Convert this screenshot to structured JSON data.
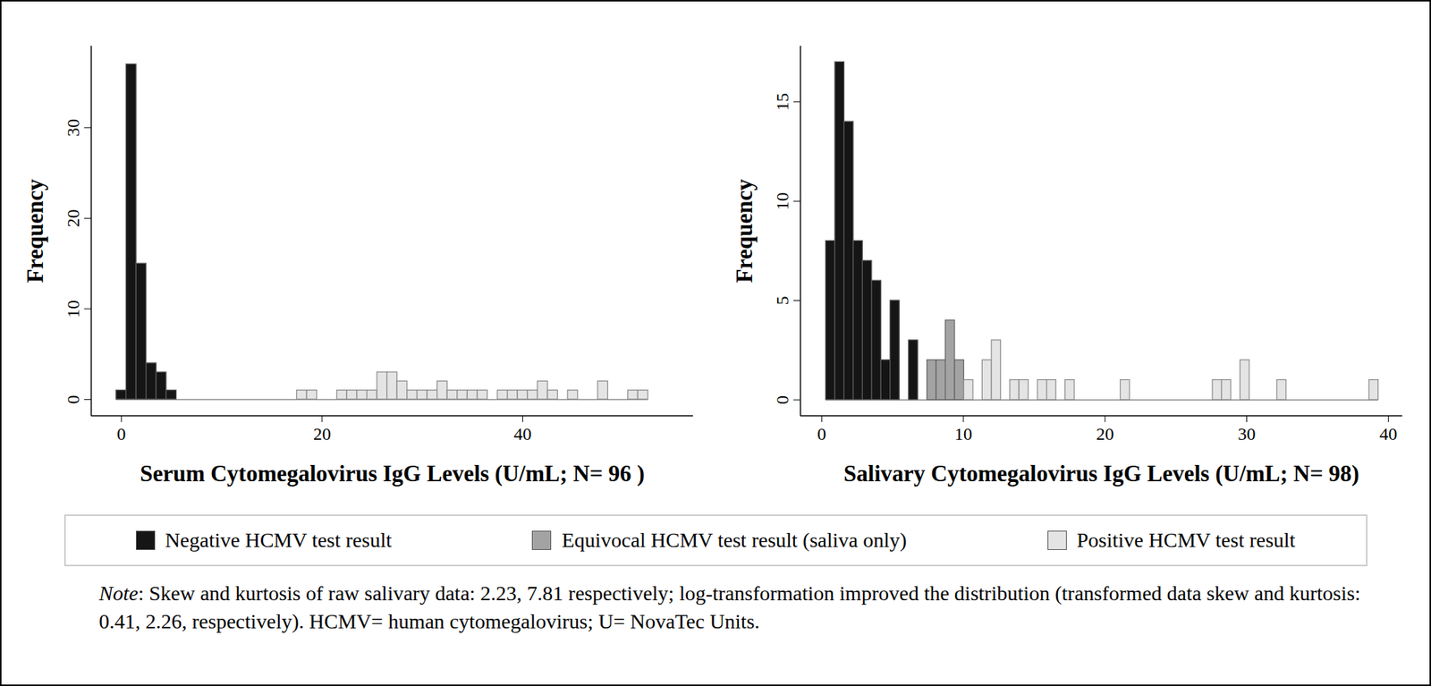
{
  "chart_data": [
    {
      "type": "histogram",
      "x_label": "Serum Cytomegalovirus IgG Levels (U/mL; N= 96 )",
      "y_label": "Frequency",
      "bins": [
        -0.5,
        0.5,
        1.5,
        2.5,
        3.5,
        4.5,
        5.5,
        6.5,
        7.5,
        8.5,
        9.5,
        10.5,
        11.5,
        12.5,
        13.5,
        14.5,
        15.5,
        16.5,
        17.5,
        18.5,
        19.5,
        20.5,
        21.5,
        22.5,
        23.5,
        24.5,
        25.5,
        26.5,
        27.5,
        28.5,
        29.5,
        30.5,
        31.5,
        32.5,
        33.5,
        34.5,
        35.5,
        36.5,
        37.5,
        38.5,
        39.5,
        40.5,
        41.5,
        42.5,
        43.5,
        44.5,
        45.5,
        46.5,
        47.5,
        48.5,
        49.5,
        50.5,
        51.5,
        52.5
      ],
      "series": [
        {
          "name": "Negative HCMV test result",
          "color": "#151515",
          "values": [
            1,
            37,
            15,
            4,
            3,
            1,
            0,
            0,
            0,
            0,
            0,
            0,
            0,
            0,
            0,
            0,
            0,
            0,
            0,
            0,
            0,
            0,
            0,
            0,
            0,
            0,
            0,
            0,
            0,
            0,
            0,
            0,
            0,
            0,
            0,
            0,
            0,
            0,
            0,
            0,
            0,
            0,
            0,
            0,
            0,
            0,
            0,
            0,
            0,
            0,
            0,
            0,
            0
          ]
        },
        {
          "name": "Positive HCMV test result",
          "color": "#e4e4e4",
          "values": [
            0,
            0,
            0,
            0,
            0,
            0,
            0,
            0,
            0,
            0,
            0,
            0,
            0,
            0,
            0,
            0,
            0,
            0,
            1,
            1,
            0,
            0,
            1,
            1,
            1,
            1,
            3,
            3,
            2,
            1,
            1,
            1,
            2,
            1,
            1,
            1,
            1,
            0,
            1,
            1,
            1,
            1,
            2,
            1,
            0,
            1,
            0,
            0,
            2,
            0,
            0,
            1,
            1
          ]
        }
      ],
      "xlim": [
        -3,
        57
      ],
      "xticks": [
        0,
        20,
        40
      ],
      "ylim": [
        -1.8,
        39
      ],
      "yticks": [
        0,
        10,
        20,
        30
      ],
      "legend": "bottom"
    },
    {
      "type": "histogram",
      "x_label": "Salivary Cytomegalovirus IgG Levels (U/mL; N= 98)",
      "y_label": "Frequency",
      "bins": [
        0.3,
        0.95,
        1.6,
        2.25,
        2.9,
        3.55,
        4.2,
        4.85,
        5.5,
        6.15,
        6.8,
        7.45,
        8.1,
        8.75,
        9.4,
        10.05,
        10.7,
        11.35,
        12.0,
        12.65,
        13.3,
        13.95,
        14.6,
        15.25,
        15.9,
        16.55,
        17.2,
        17.85,
        18.5,
        19.15,
        19.8,
        20.45,
        21.1,
        21.75,
        22.4,
        23.05,
        23.7,
        24.35,
        25.0,
        25.65,
        26.3,
        26.95,
        27.6,
        28.25,
        28.9,
        29.55,
        30.2,
        30.85,
        31.5,
        32.15,
        32.8,
        33.45,
        34.1,
        34.75,
        35.4,
        36.05,
        36.7,
        37.35,
        38.0,
        38.65,
        39.3
      ],
      "series": [
        {
          "name": "Negative HCMV test result",
          "color": "#151515",
          "values": [
            8,
            17,
            14,
            8,
            7,
            6,
            2,
            5,
            0,
            3,
            0,
            0,
            0,
            0,
            0,
            0,
            0,
            0,
            0,
            0,
            0,
            0,
            0,
            0,
            0,
            0,
            0,
            0,
            0,
            0,
            0,
            0,
            0,
            0,
            0,
            0,
            0,
            0,
            0,
            0,
            0,
            0,
            0,
            0,
            0,
            0,
            0,
            0,
            0,
            0,
            0,
            0,
            0,
            0,
            0,
            0,
            0,
            0,
            0,
            0
          ]
        },
        {
          "name": "Equivocal HCMV test result (saliva only)",
          "color": "#a3a3a3",
          "values": [
            0,
            0,
            0,
            0,
            0,
            0,
            0,
            0,
            0,
            0,
            0,
            2,
            2,
            4,
            2,
            0,
            0,
            0,
            0,
            0,
            0,
            0,
            0,
            0,
            0,
            0,
            0,
            0,
            0,
            0,
            0,
            0,
            0,
            0,
            0,
            0,
            0,
            0,
            0,
            0,
            0,
            0,
            0,
            0,
            0,
            0,
            0,
            0,
            0,
            0,
            0,
            0,
            0,
            0,
            0,
            0,
            0,
            0,
            0,
            0
          ]
        },
        {
          "name": "Positive HCMV test result",
          "color": "#e4e4e4",
          "values": [
            0,
            0,
            0,
            0,
            0,
            0,
            0,
            0,
            0,
            0,
            0,
            0,
            0,
            0,
            0,
            1,
            0,
            2,
            3,
            0,
            1,
            1,
            0,
            1,
            1,
            0,
            1,
            0,
            0,
            0,
            0,
            0,
            1,
            0,
            0,
            0,
            0,
            0,
            0,
            0,
            0,
            0,
            1,
            1,
            0,
            2,
            0,
            0,
            0,
            1,
            0,
            0,
            0,
            0,
            0,
            0,
            0,
            0,
            0,
            1
          ]
        }
      ],
      "xlim": [
        -1.5,
        41
      ],
      "xticks": [
        0,
        10,
        20,
        30,
        40
      ],
      "ylim": [
        -0.8,
        17.8
      ],
      "yticks": [
        0,
        5,
        10,
        15
      ],
      "legend": "bottom"
    }
  ],
  "note": {
    "label": "Note",
    "text": ": Skew and kurtosis of raw salivary data: 2.23, 7.81 respectively; log-transformation improved the distribution (transformed data skew and kurtosis: 0.41, 2.26, respectively). HCMV= human cytomegalovirus; U= NovaTec Units."
  }
}
